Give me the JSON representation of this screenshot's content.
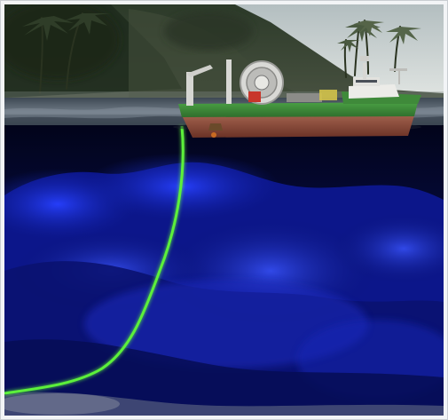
{
  "image": {
    "subject": "cable-laying-ship-underwater-cross-section",
    "colors": {
      "sky_top": "#b9c3c4",
      "sky_bottom": "#dfe4e2",
      "jungle_dark": "#1d2a1c",
      "jungle_mid": "#3d4a35",
      "water_surface": "#5b6672",
      "hull_green": "#3f8a3a",
      "hull_red": "#8a4a3a",
      "superstructure": "#e8e8e4",
      "deep_water": "#050a3a",
      "seabed_blue": "#1a2bd0",
      "cable_green": "#5cf03a"
    }
  }
}
